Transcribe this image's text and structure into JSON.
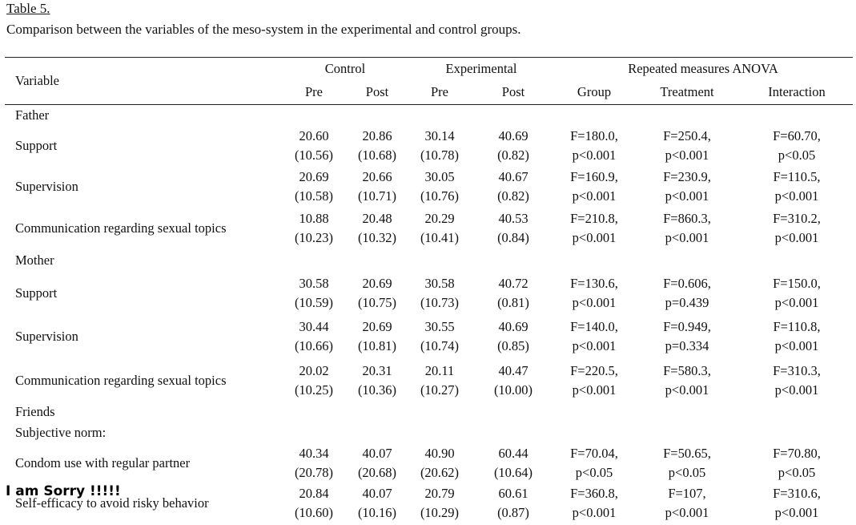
{
  "caption": {
    "number": "Table 5",
    "number_suffix": ".",
    "title": "Comparison between the variables of the meso-system in the experimental and control groups."
  },
  "header": {
    "variable": "Variable",
    "control": "Control",
    "experimental": "Experimental",
    "anova": "Repeated measures ANOVA",
    "pre1": "Pre",
    "post1": "Post",
    "pre2": "Pre",
    "post2": "Post",
    "group": "Group",
    "treatment": "Treatment",
    "interaction": "Interaction"
  },
  "sections": {
    "father": "Father",
    "mother": "Mother",
    "friends": "Friends",
    "subjective_norm": "Subjective norm:"
  },
  "rows": [
    {
      "label": "Support",
      "c_pre": [
        "20.60",
        "(10.56)"
      ],
      "c_post": [
        "20.86",
        "(10.68)"
      ],
      "e_pre": [
        "30.14",
        "(10.78)"
      ],
      "e_post": [
        "40.69",
        "(0.82)"
      ],
      "group": [
        "F=180.0,",
        "p<0.001"
      ],
      "treatment": [
        "F=250.4,",
        "p<0.001"
      ],
      "interaction": [
        "F=60.70,",
        "p<0.05"
      ]
    },
    {
      "label": "Supervision",
      "c_pre": [
        "20.69",
        "(10.58)"
      ],
      "c_post": [
        "20.66",
        "(10.71)"
      ],
      "e_pre": [
        "30.05",
        "(10.76)"
      ],
      "e_post": [
        "40.67",
        "(0.82)"
      ],
      "group": [
        "F=160.9,",
        "p<0.001"
      ],
      "treatment": [
        "F=230.9,",
        "p<0.001"
      ],
      "interaction": [
        "F=110.5,",
        "p<0.001"
      ]
    },
    {
      "label": "Communication regarding sexual topics",
      "c_pre": [
        "10.88",
        "(10.23)"
      ],
      "c_post": [
        "20.48",
        "(10.32)"
      ],
      "e_pre": [
        "20.29",
        "(10.41)"
      ],
      "e_post": [
        "40.53",
        "(0.84)"
      ],
      "group": [
        "F=210.8,",
        "p<0.001"
      ],
      "treatment": [
        "F=860.3,",
        "p<0.001"
      ],
      "interaction": [
        "F=310.2,",
        "p<0.001"
      ]
    },
    {
      "label": "Support",
      "c_pre": [
        "30.58",
        "(10.59)"
      ],
      "c_post": [
        "20.69",
        "(10.75)"
      ],
      "e_pre": [
        "30.58",
        "(10.73)"
      ],
      "e_post": [
        "40.72",
        "(0.81)"
      ],
      "group": [
        "F=130.6,",
        "p<0.001"
      ],
      "treatment": [
        "F=0.606,",
        "p=0.439"
      ],
      "interaction": [
        "F=150.0,",
        "p<0.001"
      ]
    },
    {
      "label": "Supervision",
      "c_pre": [
        "30.44",
        "(10.66)"
      ],
      "c_post": [
        "20.69",
        "(10.81)"
      ],
      "e_pre": [
        "30.55",
        "(10.74)"
      ],
      "e_post": [
        "40.69",
        "(0.85)"
      ],
      "group": [
        "F=140.0,",
        "p<0.001"
      ],
      "treatment": [
        "F=0.949,",
        "p=0.334"
      ],
      "interaction": [
        "F=110.8,",
        "p<0.001"
      ]
    },
    {
      "label": "Communication regarding sexual topics",
      "c_pre": [
        "20.02",
        "(10.25)"
      ],
      "c_post": [
        "20.31",
        "(10.36)"
      ],
      "e_pre": [
        "20.11",
        "(10.27)"
      ],
      "e_post": [
        "40.47",
        "(10.00)"
      ],
      "group": [
        "F=220.5,",
        "p<0.001"
      ],
      "treatment": [
        "F=580.3,",
        "p<0.001"
      ],
      "interaction": [
        "F=310.3,",
        "p<0.001"
      ]
    },
    {
      "label": "Condom use with regular partner",
      "c_pre": [
        "40.34",
        "(20.78)"
      ],
      "c_post": [
        "40.07",
        "(20.68)"
      ],
      "e_pre": [
        "40.90",
        "(20.62)"
      ],
      "e_post": [
        "60.44",
        "(10.64)"
      ],
      "group": [
        "F=70.04,",
        "p<0.05"
      ],
      "treatment": [
        "F=50.65,",
        "p<0.05"
      ],
      "interaction": [
        "F=70.80,",
        "p<0.05"
      ]
    },
    {
      "label": "Self-efficacy to avoid risky behavior",
      "c_pre": [
        "20.84",
        "(10.60)"
      ],
      "c_post": [
        "40.07",
        "(10.16)"
      ],
      "e_pre": [
        "20.79",
        "(10.29)"
      ],
      "e_post": [
        "60.61",
        "(0.87)"
      ],
      "group": [
        "F=360.8,",
        "p<0.001"
      ],
      "treatment": [
        "F=107,",
        "p<0.001"
      ],
      "interaction": [
        "F=310.6,",
        "p<0.001"
      ]
    }
  ],
  "overlay_text": "I am Sorry !!!!!"
}
